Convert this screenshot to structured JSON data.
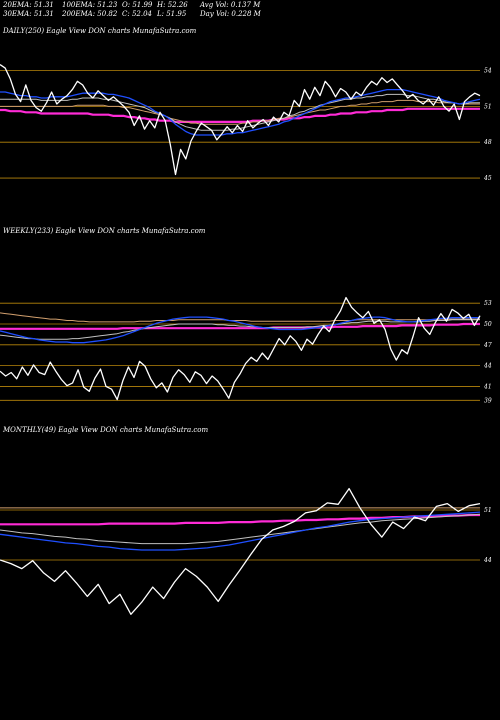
{
  "header": {
    "ema20": "20EMA: 51.31",
    "ema100": "100EMA: 51.23",
    "open": "O: 51.99",
    "high": "H: 52.26",
    "avgvol": "Avg Vol: 0.137  M",
    "ema30": "30EMA: 51.31",
    "ema200": "200EMA: 50.82",
    "close": "C: 52.04",
    "low": "L: 51.95",
    "dayvol": "Day Vol: 0.228  M"
  },
  "colors": {
    "background": "#000000",
    "price": "#ffffff",
    "ema_fast": "#1f4fff",
    "ema_long": "#ff2bd6",
    "level_line": "#b8860b",
    "ema_mid": "#c0c0c0",
    "ema_slow": "#d2a06e"
  },
  "chart_data": [
    {
      "type": "line",
      "label": "DAILY(250) Eagle   View  DON  charts MunafaSutra.com",
      "levels": [
        54,
        51,
        48,
        45
      ],
      "level_labels": [
        "54",
        "51",
        "48",
        "45"
      ],
      "ylim": [
        44,
        55.3
      ],
      "price": [
        54.5,
        54.2,
        53.3,
        52.0,
        51.4,
        52.8,
        51.5,
        50.9,
        50.6,
        51.3,
        52.2,
        51.2,
        51.6,
        51.9,
        52.4,
        53.1,
        52.8,
        52.1,
        51.7,
        52.3,
        51.9,
        51.5,
        51.8,
        51.4,
        51.0,
        50.5,
        49.4,
        50.2,
        49.1,
        49.8,
        49.2,
        50.5,
        49.8,
        47.8,
        45.3,
        47.4,
        46.6,
        48.1,
        48.9,
        49.6,
        49.3,
        49.0,
        48.2,
        48.7,
        49.3,
        48.8,
        49.4,
        48.9,
        49.8,
        49.2,
        49.6,
        49.9,
        49.4,
        50.1,
        49.7,
        50.5,
        50.2,
        51.5,
        51.0,
        52.4,
        51.6,
        52.6,
        51.9,
        53.1,
        52.6,
        51.8,
        52.5,
        52.2,
        51.6,
        52.2,
        51.9,
        52.6,
        53.1,
        52.8,
        53.4,
        53.0,
        53.3,
        52.8,
        52.3,
        51.7,
        52.0,
        51.5,
        51.2,
        51.6,
        51.1,
        51.8,
        51.0,
        50.6,
        51.2,
        49.9,
        51.4,
        51.8,
        52.1,
        51.9
      ],
      "ema_fast": [
        52.2,
        52.2,
        52.1,
        52.0,
        51.9,
        51.9,
        51.8,
        51.8,
        51.7,
        51.7,
        51.8,
        51.8,
        51.8,
        51.8,
        51.9,
        52.0,
        52.1,
        52.1,
        52.1,
        52.1,
        52.1,
        52.0,
        52.0,
        51.9,
        51.8,
        51.7,
        51.5,
        51.3,
        51.1,
        50.9,
        50.6,
        50.4,
        50.2,
        49.9,
        49.5,
        49.2,
        48.9,
        48.7,
        48.6,
        48.6,
        48.6,
        48.6,
        48.6,
        48.6,
        48.7,
        48.7,
        48.8,
        48.8,
        48.9,
        49.0,
        49.1,
        49.2,
        49.3,
        49.4,
        49.5,
        49.7,
        49.8,
        50.0,
        50.2,
        50.4,
        50.6,
        50.8,
        51.0,
        51.2,
        51.4,
        51.5,
        51.6,
        51.7,
        51.7,
        51.8,
        51.9,
        52.0,
        52.1,
        52.2,
        52.3,
        52.4,
        52.4,
        52.4,
        52.4,
        52.3,
        52.2,
        52.1,
        52.0,
        51.9,
        51.8,
        51.7,
        51.5,
        51.4,
        51.3,
        51.2,
        51.3,
        51.4,
        51.5,
        51.6
      ],
      "ema_mid": [
        51.6,
        51.6,
        51.6,
        51.6,
        51.6,
        51.6,
        51.6,
        51.6,
        51.5,
        51.5,
        51.5,
        51.5,
        51.5,
        51.5,
        51.6,
        51.6,
        51.7,
        51.7,
        51.7,
        51.7,
        51.6,
        51.6,
        51.5,
        51.4,
        51.3,
        51.2,
        51.1,
        51.0,
        50.9,
        50.7,
        50.5,
        50.4,
        50.2,
        50.0,
        49.7,
        49.5,
        49.3,
        49.2,
        49.1,
        49.0,
        49.0,
        49.0,
        49.0,
        49.0,
        49.0,
        49.1,
        49.1,
        49.2,
        49.3,
        49.4,
        49.5,
        49.6,
        49.7,
        49.8,
        49.9,
        50.0,
        50.2,
        50.3,
        50.5,
        50.6,
        50.8,
        50.9,
        51.1,
        51.2,
        51.3,
        51.4,
        51.5,
        51.6,
        51.6,
        51.7,
        51.7,
        51.8,
        51.8,
        51.9,
        51.9,
        52.0,
        52.0,
        52.0,
        52.0,
        51.9,
        51.9,
        51.8,
        51.7,
        51.6,
        51.6,
        51.5,
        51.4,
        51.3,
        51.3,
        51.2,
        51.2,
        51.3,
        51.3,
        51.3
      ],
      "ema_slow": [
        51.0,
        51.0,
        51.0,
        51.0,
        51.0,
        51.0,
        51.0,
        51.0,
        51.0,
        51.0,
        51.0,
        51.0,
        51.0,
        51.0,
        51.0,
        51.1,
        51.1,
        51.1,
        51.1,
        51.1,
        51.1,
        51.0,
        51.0,
        51.0,
        50.9,
        50.9,
        50.8,
        50.7,
        50.6,
        50.5,
        50.4,
        50.3,
        50.2,
        50.0,
        49.9,
        49.8,
        49.7,
        49.6,
        49.6,
        49.5,
        49.5,
        49.5,
        49.5,
        49.5,
        49.5,
        49.5,
        49.5,
        49.6,
        49.6,
        49.7,
        49.7,
        49.8,
        49.8,
        49.9,
        50.0,
        50.0,
        50.1,
        50.2,
        50.3,
        50.4,
        50.5,
        50.6,
        50.7,
        50.7,
        50.8,
        50.9,
        51.0,
        51.0,
        51.1,
        51.1,
        51.2,
        51.2,
        51.3,
        51.3,
        51.4,
        51.4,
        51.4,
        51.5,
        51.5,
        51.5,
        51.5,
        51.4,
        51.4,
        51.4,
        51.4,
        51.3,
        51.3,
        51.3,
        51.3,
        51.2,
        51.2,
        51.2,
        51.2,
        51.2
      ],
      "ema_long": [
        50.7,
        50.7,
        50.6,
        50.6,
        50.6,
        50.5,
        50.5,
        50.5,
        50.4,
        50.4,
        50.4,
        50.4,
        50.4,
        50.4,
        50.4,
        50.4,
        50.4,
        50.4,
        50.3,
        50.3,
        50.3,
        50.3,
        50.2,
        50.2,
        50.2,
        50.1,
        50.1,
        50.0,
        50.0,
        49.9,
        49.9,
        49.8,
        49.8,
        49.8,
        49.7,
        49.7,
        49.7,
        49.7,
        49.7,
        49.7,
        49.7,
        49.7,
        49.7,
        49.7,
        49.7,
        49.7,
        49.7,
        49.7,
        49.7,
        49.8,
        49.8,
        49.8,
        49.8,
        49.9,
        49.9,
        49.9,
        50.0,
        50.0,
        50.0,
        50.1,
        50.1,
        50.2,
        50.2,
        50.2,
        50.3,
        50.3,
        50.4,
        50.4,
        50.4,
        50.5,
        50.5,
        50.5,
        50.6,
        50.6,
        50.6,
        50.7,
        50.7,
        50.7,
        50.7,
        50.8,
        50.8,
        50.8,
        50.8,
        50.8,
        50.8,
        50.8,
        50.8,
        50.8,
        50.8,
        50.8,
        50.8,
        50.8,
        50.8,
        50.8
      ]
    },
    {
      "type": "line",
      "label": "WEEKLY(233) Eagle   View  DON  charts MunafaSutra.com",
      "levels": [
        53,
        50,
        47,
        44,
        41,
        39
      ],
      "level_labels": [
        "53",
        "50",
        "47",
        "44",
        "41",
        "39"
      ],
      "ylim": [
        37.6,
        54.9
      ],
      "price": [
        43.2,
        42.5,
        43.0,
        42.1,
        43.8,
        42.6,
        44.1,
        43.0,
        42.7,
        44.5,
        43.2,
        42.0,
        41.1,
        41.5,
        43.4,
        40.9,
        40.3,
        42.2,
        43.5,
        41.0,
        40.6,
        39.1,
        41.8,
        43.8,
        42.3,
        44.6,
        43.9,
        42.1,
        40.8,
        41.5,
        40.2,
        42.3,
        43.4,
        42.7,
        41.6,
        43.1,
        42.6,
        41.4,
        42.5,
        41.8,
        40.6,
        39.3,
        41.6,
        42.8,
        44.3,
        45.2,
        44.6,
        45.8,
        44.9,
        46.4,
        47.9,
        47.0,
        48.3,
        47.5,
        46.2,
        47.8,
        47.1,
        48.5,
        49.7,
        48.9,
        50.6,
        51.9,
        53.8,
        52.4,
        51.6,
        50.9,
        51.8,
        50.1,
        50.6,
        49.2,
        46.4,
        44.8,
        46.3,
        45.7,
        48.2,
        50.9,
        49.4,
        48.5,
        50.2,
        51.5,
        50.4,
        52.1,
        51.6,
        50.8,
        51.4,
        49.8,
        51.2
      ],
      "ema_fast": [
        49.0,
        48.8,
        48.6,
        48.4,
        48.2,
        48.0,
        47.9,
        47.7,
        47.6,
        47.5,
        47.4,
        47.4,
        47.4,
        47.3,
        47.3,
        47.3,
        47.4,
        47.5,
        47.6,
        47.7,
        47.9,
        48.1,
        48.3,
        48.6,
        48.9,
        49.2,
        49.5,
        49.8,
        50.1,
        50.3,
        50.5,
        50.7,
        50.8,
        50.9,
        51.0,
        51.0,
        51.0,
        51.0,
        50.9,
        50.8,
        50.7,
        50.5,
        50.4,
        50.2,
        50.0,
        49.8,
        49.6,
        49.5,
        49.4,
        49.3,
        49.2,
        49.2,
        49.2,
        49.2,
        49.2,
        49.3,
        49.4,
        49.5,
        49.6,
        49.8,
        49.9,
        50.1,
        50.3,
        50.5,
        50.7,
        50.8,
        50.9,
        51.0,
        51.0,
        50.9,
        50.7,
        50.5,
        50.4,
        50.3,
        50.3,
        50.4,
        50.5,
        50.6,
        50.7,
        50.8,
        50.8,
        50.9,
        50.9,
        50.9,
        50.9,
        50.9,
        50.9
      ],
      "ema_mid": [
        48.4,
        48.3,
        48.2,
        48.1,
        48.0,
        47.9,
        47.9,
        47.8,
        47.8,
        47.8,
        47.8,
        47.8,
        47.8,
        47.9,
        47.9,
        48.0,
        48.1,
        48.2,
        48.3,
        48.4,
        48.5,
        48.6,
        48.8,
        48.9,
        49.1,
        49.2,
        49.4,
        49.5,
        49.6,
        49.7,
        49.8,
        49.9,
        50.0,
        50.0,
        50.0,
        50.0,
        50.0,
        50.0,
        50.0,
        49.9,
        49.9,
        49.8,
        49.8,
        49.7,
        49.7,
        49.6,
        49.6,
        49.5,
        49.5,
        49.5,
        49.5,
        49.5,
        49.5,
        49.5,
        49.5,
        49.6,
        49.6,
        49.7,
        49.8,
        49.8,
        49.9,
        50.0,
        50.1,
        50.2,
        50.2,
        50.3,
        50.4,
        50.4,
        50.4,
        50.4,
        50.3,
        50.3,
        50.3,
        50.3,
        50.3,
        50.3,
        50.4,
        50.4,
        50.5,
        50.5,
        50.5,
        50.6,
        50.6,
        50.6,
        50.6,
        50.6,
        50.6
      ],
      "ema_slow": [
        51.6,
        51.5,
        51.4,
        51.3,
        51.2,
        51.1,
        51.0,
        50.9,
        50.8,
        50.7,
        50.7,
        50.6,
        50.5,
        50.5,
        50.4,
        50.4,
        50.3,
        50.3,
        50.3,
        50.3,
        50.3,
        50.3,
        50.3,
        50.3,
        50.3,
        50.4,
        50.4,
        50.4,
        50.5,
        50.5,
        50.5,
        50.5,
        50.6,
        50.6,
        50.6,
        50.6,
        50.6,
        50.6,
        50.6,
        50.6,
        50.6,
        50.5,
        50.5,
        50.5,
        50.5,
        50.4,
        50.4,
        50.4,
        50.4,
        50.4,
        50.4,
        50.4,
        50.4,
        50.4,
        50.4,
        50.4,
        50.4,
        50.4,
        50.4,
        50.4,
        50.5,
        50.5,
        50.5,
        50.5,
        50.6,
        50.6,
        50.6,
        50.6,
        50.6,
        50.6,
        50.6,
        50.6,
        50.6,
        50.6,
        50.6,
        50.6,
        50.6,
        50.6,
        50.6,
        50.7,
        50.7,
        50.7,
        50.7,
        50.7,
        50.7,
        50.7,
        50.7
      ],
      "ema_long": [
        49.3,
        49.3,
        49.3,
        49.3,
        49.3,
        49.3,
        49.3,
        49.3,
        49.3,
        49.3,
        49.3,
        49.3,
        49.3,
        49.3,
        49.3,
        49.3,
        49.3,
        49.3,
        49.3,
        49.3,
        49.3,
        49.3,
        49.4,
        49.4,
        49.4,
        49.4,
        49.4,
        49.4,
        49.4,
        49.4,
        49.4,
        49.4,
        49.4,
        49.4,
        49.4,
        49.4,
        49.4,
        49.4,
        49.4,
        49.4,
        49.4,
        49.4,
        49.4,
        49.4,
        49.4,
        49.4,
        49.4,
        49.4,
        49.4,
        49.5,
        49.5,
        49.5,
        49.5,
        49.5,
        49.5,
        49.5,
        49.5,
        49.5,
        49.5,
        49.5,
        49.6,
        49.6,
        49.6,
        49.6,
        49.6,
        49.7,
        49.7,
        49.7,
        49.7,
        49.7,
        49.7,
        49.7,
        49.8,
        49.8,
        49.8,
        49.8,
        49.8,
        49.8,
        49.9,
        49.9,
        49.9,
        49.9,
        49.9,
        50.0,
        50.0,
        50.0,
        50.0
      ]
    },
    {
      "type": "line",
      "label": "MONTHLY(49) Eagle   View  DON  charts MunafaSutra.com",
      "levels": [
        51,
        44
      ],
      "level_labels": [
        "51",
        "44"
      ],
      "ylim": [
        35.6,
        55.2
      ],
      "price": [
        44.0,
        43.5,
        42.8,
        43.9,
        42.2,
        41.0,
        42.5,
        40.8,
        38.9,
        40.6,
        37.9,
        39.2,
        36.4,
        38.1,
        40.2,
        38.6,
        40.9,
        42.8,
        41.7,
        40.2,
        38.2,
        40.5,
        42.6,
        44.8,
        46.9,
        48.2,
        48.7,
        49.4,
        50.6,
        50.9,
        52.0,
        51.8,
        54.0,
        51.3,
        49.0,
        47.2,
        49.3,
        48.4,
        50.0,
        49.5,
        51.5,
        51.9,
        50.8,
        51.6,
        51.9
      ],
      "ema_fast": [
        47.6,
        47.4,
        47.2,
        47.0,
        46.8,
        46.6,
        46.4,
        46.3,
        46.1,
        45.9,
        45.8,
        45.6,
        45.5,
        45.4,
        45.4,
        45.4,
        45.4,
        45.5,
        45.6,
        45.7,
        45.9,
        46.1,
        46.4,
        46.7,
        47.0,
        47.3,
        47.6,
        47.9,
        48.2,
        48.5,
        48.7,
        49.0,
        49.3,
        49.5,
        49.7,
        49.8,
        49.9,
        50.0,
        50.1,
        50.2,
        50.3,
        50.4,
        50.5,
        50.6,
        50.7
      ],
      "ema_mid": [
        48.2,
        48.0,
        47.8,
        47.7,
        47.5,
        47.3,
        47.2,
        47.0,
        46.9,
        46.7,
        46.6,
        46.5,
        46.4,
        46.3,
        46.3,
        46.3,
        46.3,
        46.3,
        46.4,
        46.5,
        46.6,
        46.8,
        47.0,
        47.2,
        47.4,
        47.6,
        47.8,
        48.0,
        48.2,
        48.4,
        48.6,
        48.8,
        49.0,
        49.2,
        49.3,
        49.5,
        49.6,
        49.7,
        49.8,
        49.9,
        50.0,
        50.1,
        50.2,
        50.3,
        50.4
      ],
      "ema_slow": [
        51.3,
        51.3,
        51.3,
        51.3,
        51.3,
        51.3,
        51.3,
        51.3,
        51.3,
        51.3,
        51.3,
        51.3,
        51.3,
        51.3,
        51.3,
        51.3,
        51.3,
        51.3,
        51.3,
        51.3,
        51.3,
        51.3,
        51.3,
        51.3,
        51.3,
        51.3,
        51.3,
        51.3,
        51.3,
        51.3,
        51.3,
        51.3,
        51.3,
        51.3,
        51.3,
        51.3,
        51.3,
        51.3,
        51.3,
        51.3,
        51.3,
        51.3,
        51.3,
        51.3,
        51.3
      ],
      "ema_long": [
        49.0,
        49.0,
        49.0,
        49.0,
        49.0,
        49.0,
        49.0,
        49.0,
        49.0,
        49.0,
        49.1,
        49.1,
        49.1,
        49.1,
        49.1,
        49.1,
        49.1,
        49.2,
        49.2,
        49.2,
        49.2,
        49.3,
        49.3,
        49.3,
        49.4,
        49.4,
        49.5,
        49.5,
        49.6,
        49.6,
        49.7,
        49.7,
        49.8,
        49.8,
        49.9,
        49.9,
        50.0,
        50.0,
        50.1,
        50.1,
        50.1,
        50.2,
        50.2,
        50.3,
        50.3
      ]
    }
  ]
}
